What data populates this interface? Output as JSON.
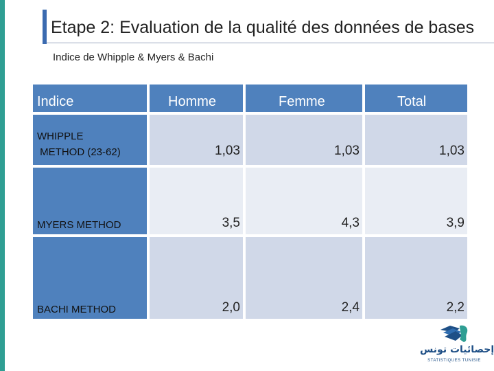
{
  "slide": {
    "title": "Etape 2: Evaluation de la qualité des données de bases",
    "subtitle": "Indice de Whipple & Myers & Bachi"
  },
  "table": {
    "headers": [
      "Indice",
      "Homme",
      "Femme",
      "Total"
    ],
    "rows": [
      {
        "label": "WHIPPLE\n METHOD (23-62)",
        "values": [
          "1,03",
          "1,03",
          "1,03"
        ]
      },
      {
        "label": "MYERS METHOD",
        "values": [
          "3,5",
          "4,3",
          "3,9"
        ]
      },
      {
        "label": "BACHI METHOD",
        "values": [
          "2,0",
          "2,4",
          "2,2"
        ]
      }
    ]
  },
  "logo": {
    "arabic": "إحصائيات تونس",
    "latin": "STATISTIQUES TUNISIE"
  },
  "colors": {
    "header": "#4f81bd",
    "band_dark": "#d0d8e8",
    "band_light": "#e9edf4",
    "accent_left": "#2f9e93",
    "title_bar": "#3b6bb0"
  }
}
